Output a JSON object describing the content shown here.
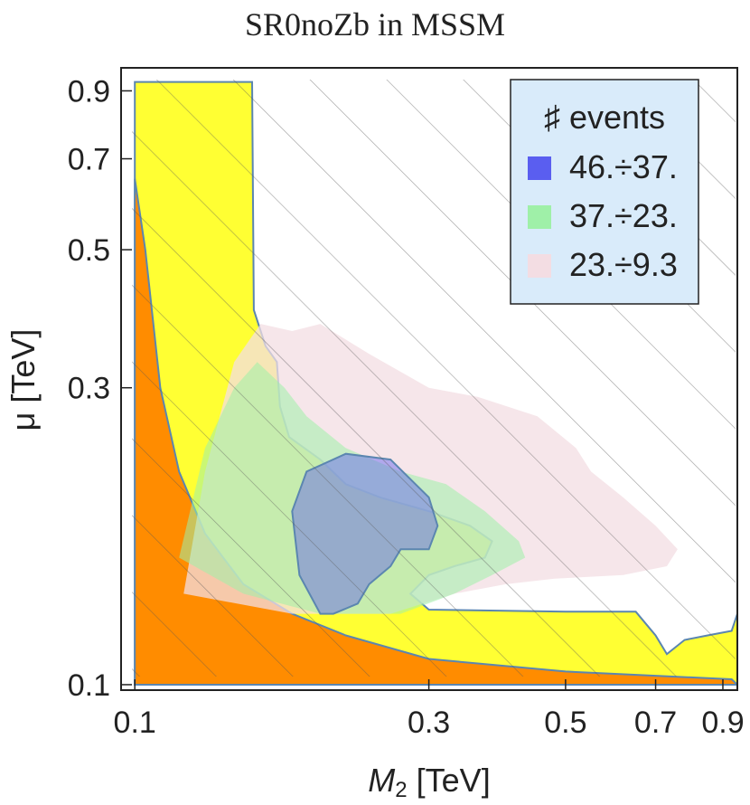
{
  "chart_data": {
    "type": "contour",
    "title": "SR0noZb in MSSM",
    "xlabel": "M",
    "xlabel_sub": "2",
    "xlabel_unit": " [TeV]",
    "ylabel": "μ [TeV]",
    "xscale": "log",
    "yscale": "log",
    "xlim": [
      0.095,
      0.95
    ],
    "ylim": [
      0.098,
      0.98
    ],
    "xticks": [
      0.1,
      0.3,
      0.5,
      0.7,
      0.9
    ],
    "xtick_labels": [
      "0.1",
      "0.3",
      "0.5",
      "0.7",
      "0.9"
    ],
    "yticks": [
      0.1,
      0.3,
      0.5,
      0.7,
      0.9
    ],
    "ytick_labels": [
      "0.1",
      "0.3",
      "0.5",
      "0.7",
      "0.9"
    ],
    "legend": {
      "title": "♯ events",
      "placement": "top-right",
      "entries": [
        {
          "label": "46.÷37.",
          "color": "#5a5ef0"
        },
        {
          "label": "37.÷23.",
          "color": "#9ff0a8"
        },
        {
          "label": "23.÷9.3",
          "color": "#f3dde3"
        }
      ]
    },
    "colors": {
      "excluded_region": "#ff8c00",
      "allowed_region": "#ffff33",
      "boundary": "#5b86b0",
      "legend_box": "#d9ebfa"
    },
    "regions": [
      {
        "name": "allowed-yellow",
        "points": [
          [
            0.1,
            0.1
          ],
          [
            0.1,
            0.93
          ],
          [
            0.155,
            0.93
          ],
          [
            0.156,
            0.4
          ],
          [
            0.163,
            0.35
          ],
          [
            0.17,
            0.33
          ],
          [
            0.172,
            0.28
          ],
          [
            0.178,
            0.25
          ],
          [
            0.2,
            0.23
          ],
          [
            0.22,
            0.21
          ],
          [
            0.25,
            0.2
          ],
          [
            0.3,
            0.19
          ],
          [
            0.35,
            0.18
          ],
          [
            0.38,
            0.17
          ],
          [
            0.37,
            0.16
          ],
          [
            0.33,
            0.155
          ],
          [
            0.3,
            0.15
          ],
          [
            0.28,
            0.14
          ],
          [
            0.3,
            0.132
          ],
          [
            0.5,
            0.131
          ],
          [
            0.65,
            0.131
          ],
          [
            0.7,
            0.12
          ],
          [
            0.73,
            0.112
          ],
          [
            0.78,
            0.118
          ],
          [
            0.85,
            0.12
          ],
          [
            0.93,
            0.122
          ],
          [
            0.95,
            0.13
          ],
          [
            0.95,
            0.1
          ]
        ]
      },
      {
        "name": "excluded-orange",
        "points": [
          [
            0.1,
            0.1
          ],
          [
            0.1,
            0.65
          ],
          [
            0.104,
            0.5
          ],
          [
            0.11,
            0.3
          ],
          [
            0.118,
            0.22
          ],
          [
            0.13,
            0.175
          ],
          [
            0.15,
            0.145
          ],
          [
            0.18,
            0.13
          ],
          [
            0.22,
            0.12
          ],
          [
            0.3,
            0.11
          ],
          [
            0.5,
            0.105
          ],
          [
            0.93,
            0.102
          ],
          [
            0.95,
            0.1
          ]
        ]
      },
      {
        "name": "pink-23-9.3",
        "points": [
          [
            0.12,
            0.14
          ],
          [
            0.13,
            0.22
          ],
          [
            0.145,
            0.33
          ],
          [
            0.16,
            0.38
          ],
          [
            0.18,
            0.37
          ],
          [
            0.2,
            0.38
          ],
          [
            0.24,
            0.34
          ],
          [
            0.3,
            0.3
          ],
          [
            0.36,
            0.29
          ],
          [
            0.45,
            0.27
          ],
          [
            0.52,
            0.24
          ],
          [
            0.55,
            0.22
          ],
          [
            0.62,
            0.2
          ],
          [
            0.7,
            0.18
          ],
          [
            0.76,
            0.165
          ],
          [
            0.73,
            0.155
          ],
          [
            0.62,
            0.15
          ],
          [
            0.48,
            0.148
          ],
          [
            0.4,
            0.145
          ],
          [
            0.33,
            0.14
          ],
          [
            0.26,
            0.13
          ],
          [
            0.18,
            0.13
          ]
        ]
      },
      {
        "name": "green-37-23",
        "points": [
          [
            0.118,
            0.16
          ],
          [
            0.13,
            0.24
          ],
          [
            0.145,
            0.3
          ],
          [
            0.158,
            0.33
          ],
          [
            0.175,
            0.3
          ],
          [
            0.19,
            0.27
          ],
          [
            0.22,
            0.24
          ],
          [
            0.27,
            0.22
          ],
          [
            0.32,
            0.21
          ],
          [
            0.37,
            0.19
          ],
          [
            0.42,
            0.17
          ],
          [
            0.43,
            0.16
          ],
          [
            0.38,
            0.15
          ],
          [
            0.33,
            0.14
          ],
          [
            0.27,
            0.13
          ],
          [
            0.2,
            0.13
          ],
          [
            0.15,
            0.14
          ]
        ]
      },
      {
        "name": "blue-46-37",
        "points": [
          [
            0.2,
            0.13
          ],
          [
            0.185,
            0.15
          ],
          [
            0.18,
            0.19
          ],
          [
            0.19,
            0.22
          ],
          [
            0.22,
            0.235
          ],
          [
            0.26,
            0.23
          ],
          [
            0.3,
            0.2
          ],
          [
            0.31,
            0.18
          ],
          [
            0.3,
            0.165
          ],
          [
            0.27,
            0.165
          ],
          [
            0.26,
            0.155
          ],
          [
            0.24,
            0.145
          ],
          [
            0.23,
            0.135
          ],
          [
            0.21,
            0.13
          ]
        ]
      }
    ]
  }
}
